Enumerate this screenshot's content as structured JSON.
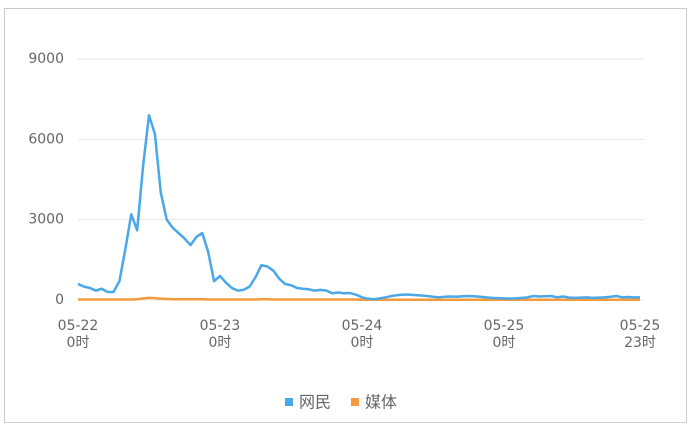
{
  "chart_data": {
    "type": "line",
    "categories": [
      "05-22\n0时",
      null,
      null,
      null,
      null,
      null,
      null,
      null,
      null,
      null,
      null,
      null,
      null,
      null,
      null,
      null,
      null,
      null,
      null,
      null,
      null,
      null,
      null,
      null,
      "05-23\n0时",
      null,
      null,
      null,
      null,
      null,
      null,
      null,
      null,
      null,
      null,
      null,
      null,
      null,
      null,
      null,
      null,
      null,
      null,
      null,
      null,
      null,
      null,
      null,
      "05-24\n0时",
      null,
      null,
      null,
      null,
      null,
      null,
      null,
      null,
      null,
      null,
      null,
      null,
      null,
      null,
      null,
      null,
      null,
      null,
      null,
      null,
      null,
      null,
      null,
      "05-25\n0时",
      null,
      null,
      null,
      null,
      null,
      null,
      null,
      null,
      null,
      null,
      null,
      null,
      null,
      null,
      null,
      null,
      null,
      null,
      null,
      null,
      null,
      null,
      "05-25\n23时"
    ],
    "series": [
      {
        "name": "网民",
        "color": "#4aa8e8",
        "values": [
          600,
          500,
          450,
          350,
          420,
          300,
          300,
          700,
          1900,
          3200,
          2600,
          5000,
          6900,
          6200,
          4000,
          3000,
          2700,
          2500,
          2300,
          2050,
          2350,
          2500,
          1800,
          700,
          900,
          650,
          450,
          350,
          380,
          500,
          850,
          1300,
          1250,
          1100,
          800,
          600,
          550,
          450,
          420,
          400,
          350,
          380,
          350,
          250,
          280,
          250,
          260,
          200,
          100,
          50,
          30,
          60,
          100,
          150,
          180,
          200,
          200,
          180,
          170,
          150,
          120,
          100,
          120,
          130,
          120,
          140,
          150,
          140,
          120,
          100,
          80,
          70,
          60,
          50,
          60,
          80,
          100,
          150,
          130,
          140,
          150,
          100,
          130,
          90,
          80,
          90,
          100,
          80,
          90,
          100,
          120,
          150,
          100,
          110,
          100,
          100
        ]
      },
      {
        "name": "媒体",
        "color": "#f59a3c",
        "values": [
          20,
          20,
          20,
          20,
          20,
          20,
          20,
          20,
          20,
          20,
          30,
          60,
          80,
          70,
          50,
          40,
          30,
          30,
          30,
          30,
          30,
          30,
          20,
          20,
          20,
          20,
          20,
          20,
          20,
          20,
          20,
          30,
          30,
          20,
          20,
          20,
          20,
          20,
          20,
          20,
          20,
          20,
          20,
          20,
          20,
          20,
          20,
          20,
          10,
          10,
          10,
          10,
          10,
          10,
          10,
          10,
          10,
          10,
          10,
          10,
          10,
          10,
          10,
          10,
          10,
          10,
          10,
          10,
          10,
          10,
          10,
          10,
          10,
          10,
          10,
          10,
          10,
          10,
          10,
          10,
          10,
          10,
          10,
          10,
          10,
          10,
          10,
          10,
          10,
          10,
          10,
          10,
          10,
          10,
          10,
          10
        ]
      }
    ],
    "ylim": [
      0,
      9000
    ],
    "yticks": [
      0,
      3000,
      6000,
      9000
    ],
    "grid": true
  }
}
